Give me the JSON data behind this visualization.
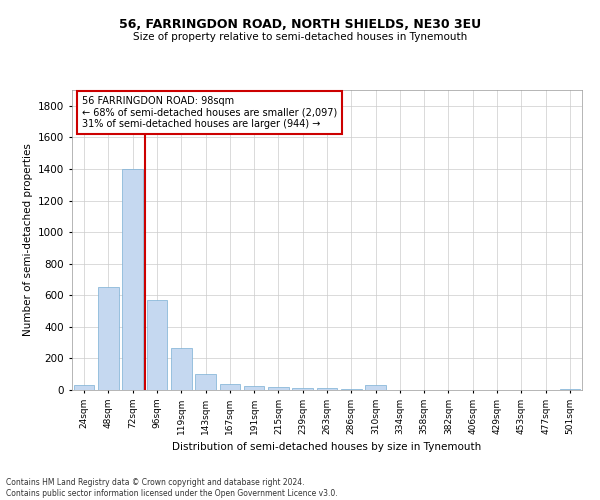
{
  "title1": "56, FARRINGDON ROAD, NORTH SHIELDS, NE30 3EU",
  "title2": "Size of property relative to semi-detached houses in Tynemouth",
  "xlabel": "Distribution of semi-detached houses by size in Tynemouth",
  "ylabel": "Number of semi-detached properties",
  "categories": [
    "24sqm",
    "48sqm",
    "72sqm",
    "96sqm",
    "119sqm",
    "143sqm",
    "167sqm",
    "191sqm",
    "215sqm",
    "239sqm",
    "263sqm",
    "286sqm",
    "310sqm",
    "334sqm",
    "358sqm",
    "382sqm",
    "406sqm",
    "429sqm",
    "453sqm",
    "477sqm",
    "501sqm"
  ],
  "values": [
    30,
    650,
    1400,
    570,
    265,
    100,
    35,
    25,
    20,
    15,
    10,
    5,
    30,
    0,
    0,
    0,
    0,
    0,
    0,
    0,
    5
  ],
  "bar_color": "#c5d8f0",
  "bar_edge_color": "#7bafd4",
  "bar_width": 0.85,
  "vline_x_idx": 2,
  "vline_color": "#cc0000",
  "annotation_line1": "56 FARRINGDON ROAD: 98sqm",
  "annotation_line2": "← 68% of semi-detached houses are smaller (2,097)",
  "annotation_line3": "31% of semi-detached houses are larger (944) →",
  "annotation_box_color": "#ffffff",
  "annotation_box_edgecolor": "#cc0000",
  "ylim": [
    0,
    1900
  ],
  "yticks": [
    0,
    200,
    400,
    600,
    800,
    1000,
    1200,
    1400,
    1600,
    1800
  ],
  "grid_color": "#cccccc",
  "footnote": "Contains HM Land Registry data © Crown copyright and database right 2024.\nContains public sector information licensed under the Open Government Licence v3.0.",
  "bg_color": "#ffffff"
}
